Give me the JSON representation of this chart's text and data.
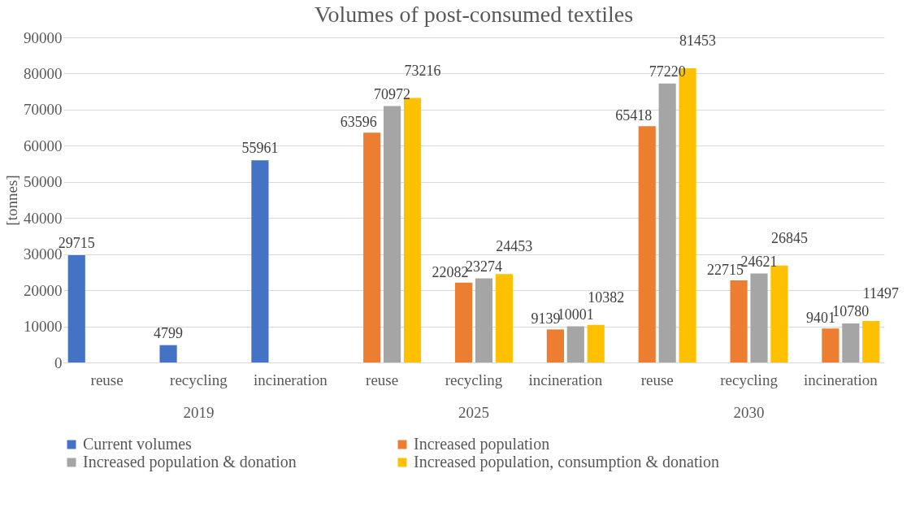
{
  "chart_data": {
    "type": "bar",
    "title": "Volumes of post-consumed textiles",
    "ylabel": "[tonnes]",
    "categories": [
      "reuse",
      "recycling",
      "incineration",
      "reuse",
      "recycling",
      "incineration",
      "reuse",
      "recycling",
      "incineration"
    ],
    "annotations": [
      "2019",
      "2025",
      "2030"
    ],
    "series": [
      {
        "name": "Current volumes",
        "color": "#4472c4",
        "values": [
          29715,
          4799,
          55961,
          null,
          null,
          null,
          null,
          null,
          null
        ]
      },
      {
        "name": "Increased population",
        "color": "#ed7d31",
        "values": [
          null,
          null,
          null,
          63596,
          22082,
          9139,
          65418,
          22715,
          9401
        ]
      },
      {
        "name": "Increased population & donation",
        "color": "#a5a5a5",
        "values": [
          null,
          null,
          null,
          70972,
          23274,
          10001,
          77220,
          24621,
          10780
        ]
      },
      {
        "name": "Increased population, consumption & donation",
        "color": "#ffc000",
        "values": [
          null,
          null,
          null,
          73216,
          24453,
          10382,
          81453,
          26845,
          11497
        ]
      }
    ],
    "ylim": [
      0,
      90000
    ],
    "yticks": [
      0,
      10000,
      20000,
      30000,
      40000,
      50000,
      60000,
      70000,
      80000,
      90000
    ],
    "grid": "y",
    "legend": "bottom",
    "data_labels": true
  }
}
